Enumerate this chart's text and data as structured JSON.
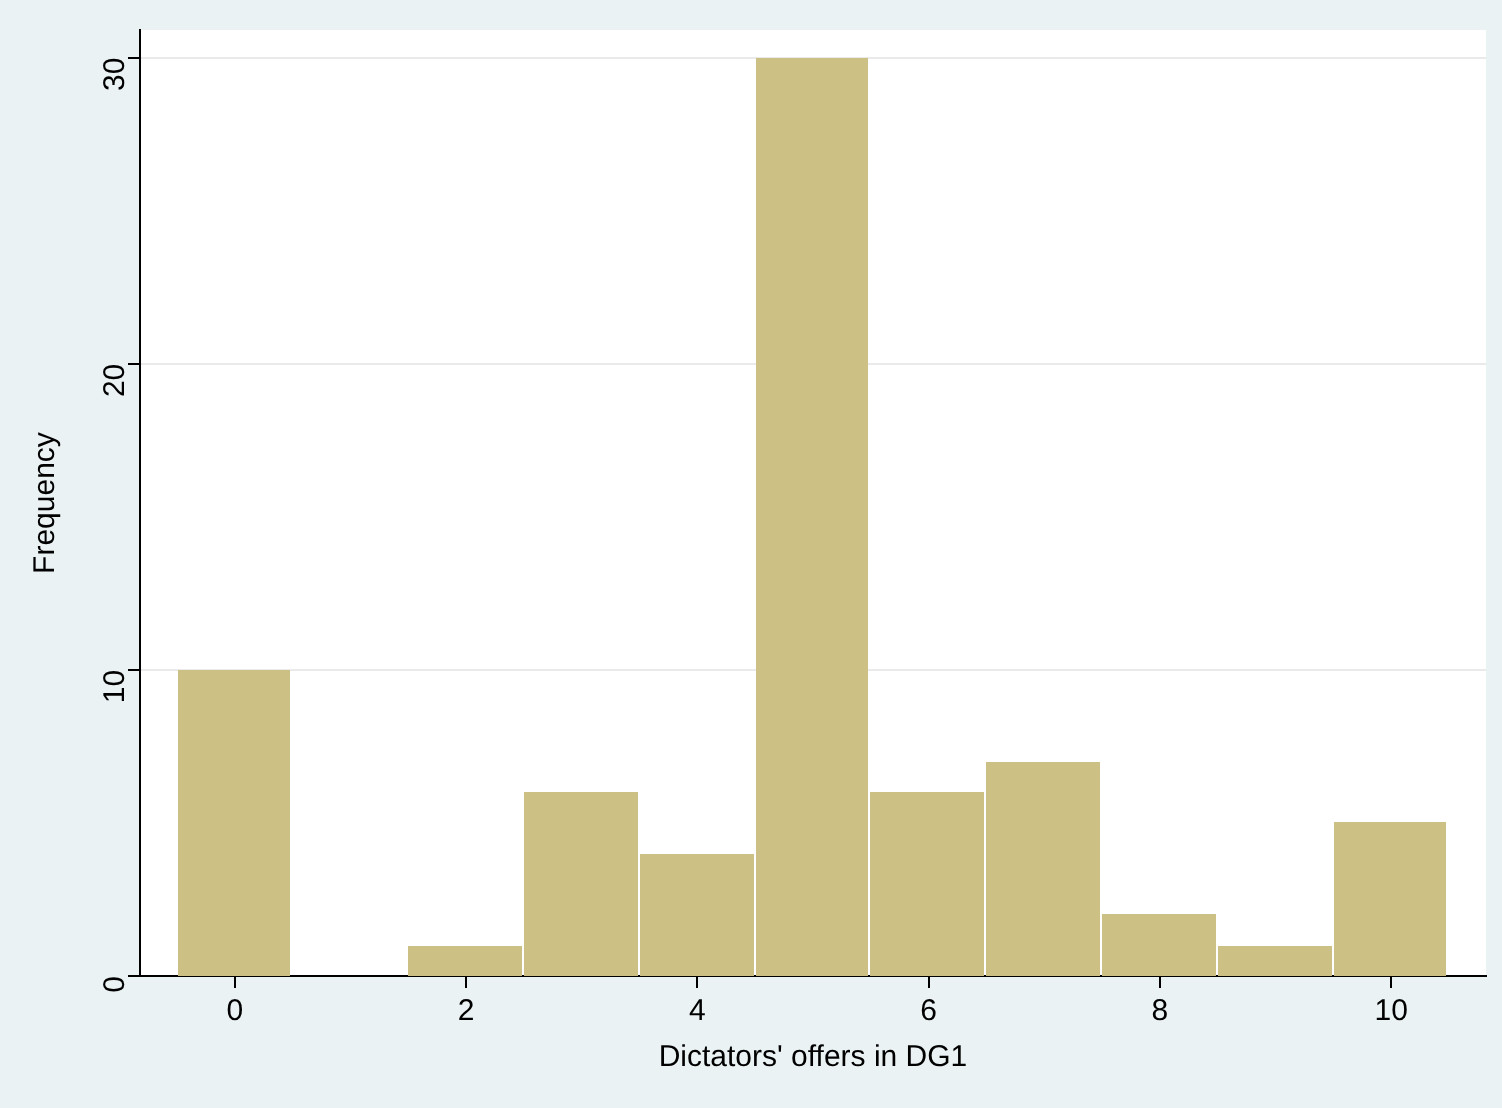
{
  "chart_data": {
    "type": "histogram",
    "xlabel": "Dictators' offers in DG1",
    "ylabel": "Frequency",
    "bins": [
      -0.5,
      0.5,
      1.5,
      2.5,
      3.5,
      4.5,
      5.5,
      6.5,
      7.5,
      8.5,
      9.5,
      10.5
    ],
    "values": [
      10,
      0,
      1,
      6,
      4,
      30,
      6,
      7,
      2,
      1,
      5
    ],
    "color": "#cdc084",
    "xlim": [
      -0.82,
      10.82
    ],
    "xticks": [
      0,
      2,
      4,
      6,
      8,
      10
    ],
    "ylim": [
      0,
      30.9
    ],
    "yticks": [
      0,
      10,
      20,
      30
    ],
    "grid": "y",
    "legend": false
  }
}
